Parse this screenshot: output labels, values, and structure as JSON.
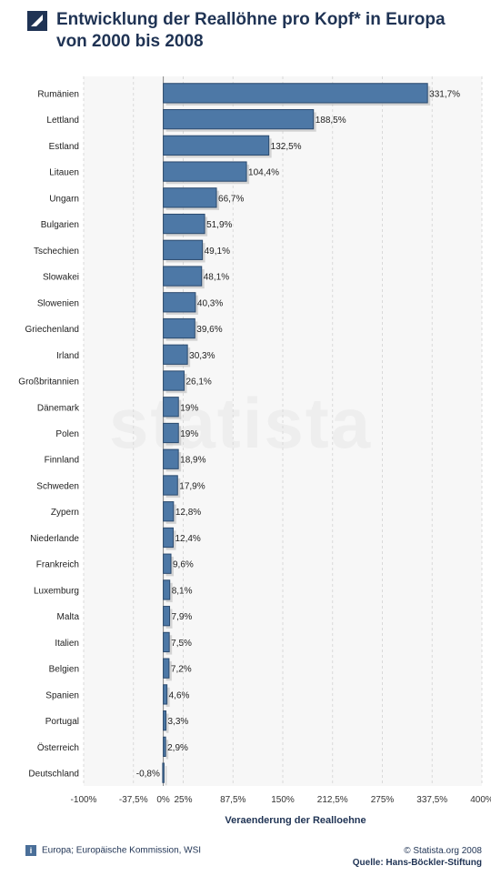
{
  "header": {
    "title": "Entwicklung der Reallöhne pro Kopf* in Europa\nvon 2000 bis 2008"
  },
  "watermark": "statista",
  "footer": {
    "region_note": "Europa; Europäische Kommission, WSI",
    "copyright": "© Statista.org 2008",
    "source": "Quelle: Hans-Böckler-Stiftung",
    "info_icon": "i"
  },
  "colors": {
    "bar": "#4d78a6",
    "bar_border": "#2b4a6e",
    "title": "#1f3354"
  },
  "chart_data": {
    "type": "bar",
    "orientation": "horizontal",
    "xlabel": "Veraenderung der Realloehne",
    "xlim": [
      -100,
      400
    ],
    "xticks": [
      -100,
      -37.5,
      0,
      25,
      87.5,
      150,
      212.5,
      275,
      337.5,
      400
    ],
    "xtick_labels": [
      "-100%",
      "-37,5%",
      "0%",
      "25%",
      "87,5%",
      "150%",
      "212,5%",
      "275%",
      "337,5%",
      "400%"
    ],
    "grid": true,
    "categories": [
      "Rumänien",
      "Lettland",
      "Estland",
      "Litauen",
      "Ungarn",
      "Bulgarien",
      "Tschechien",
      "Slowakei",
      "Slowenien",
      "Griechenland",
      "Irland",
      "Großbritannien",
      "Dänemark",
      "Polen",
      "Finnland",
      "Schweden",
      "Zypern",
      "Niederlande",
      "Frankreich",
      "Luxemburg",
      "Malta",
      "Italien",
      "Belgien",
      "Spanien",
      "Portugal",
      "Österreich",
      "Deutschland"
    ],
    "values": [
      331.7,
      188.5,
      132.5,
      104.4,
      66.7,
      51.9,
      49.1,
      48.1,
      40.3,
      39.6,
      30.3,
      26.1,
      19,
      19,
      18.9,
      17.9,
      12.8,
      12.4,
      9.6,
      8.1,
      7.9,
      7.5,
      7.2,
      4.6,
      3.3,
      2.9,
      -0.8
    ],
    "value_labels": [
      "331,7%",
      "188,5%",
      "132,5%",
      "104,4%",
      "66,7%",
      "51,9%",
      "49,1%",
      "48,1%",
      "40,3%",
      "39,6%",
      "30,3%",
      "26,1%",
      "19%",
      "19%",
      "18,9%",
      "17,9%",
      "12,8%",
      "12,4%",
      "9,6%",
      "8,1%",
      "7,9%",
      "7,5%",
      "7,2%",
      "4,6%",
      "3,3%",
      "2,9%",
      "-0,8%"
    ]
  }
}
